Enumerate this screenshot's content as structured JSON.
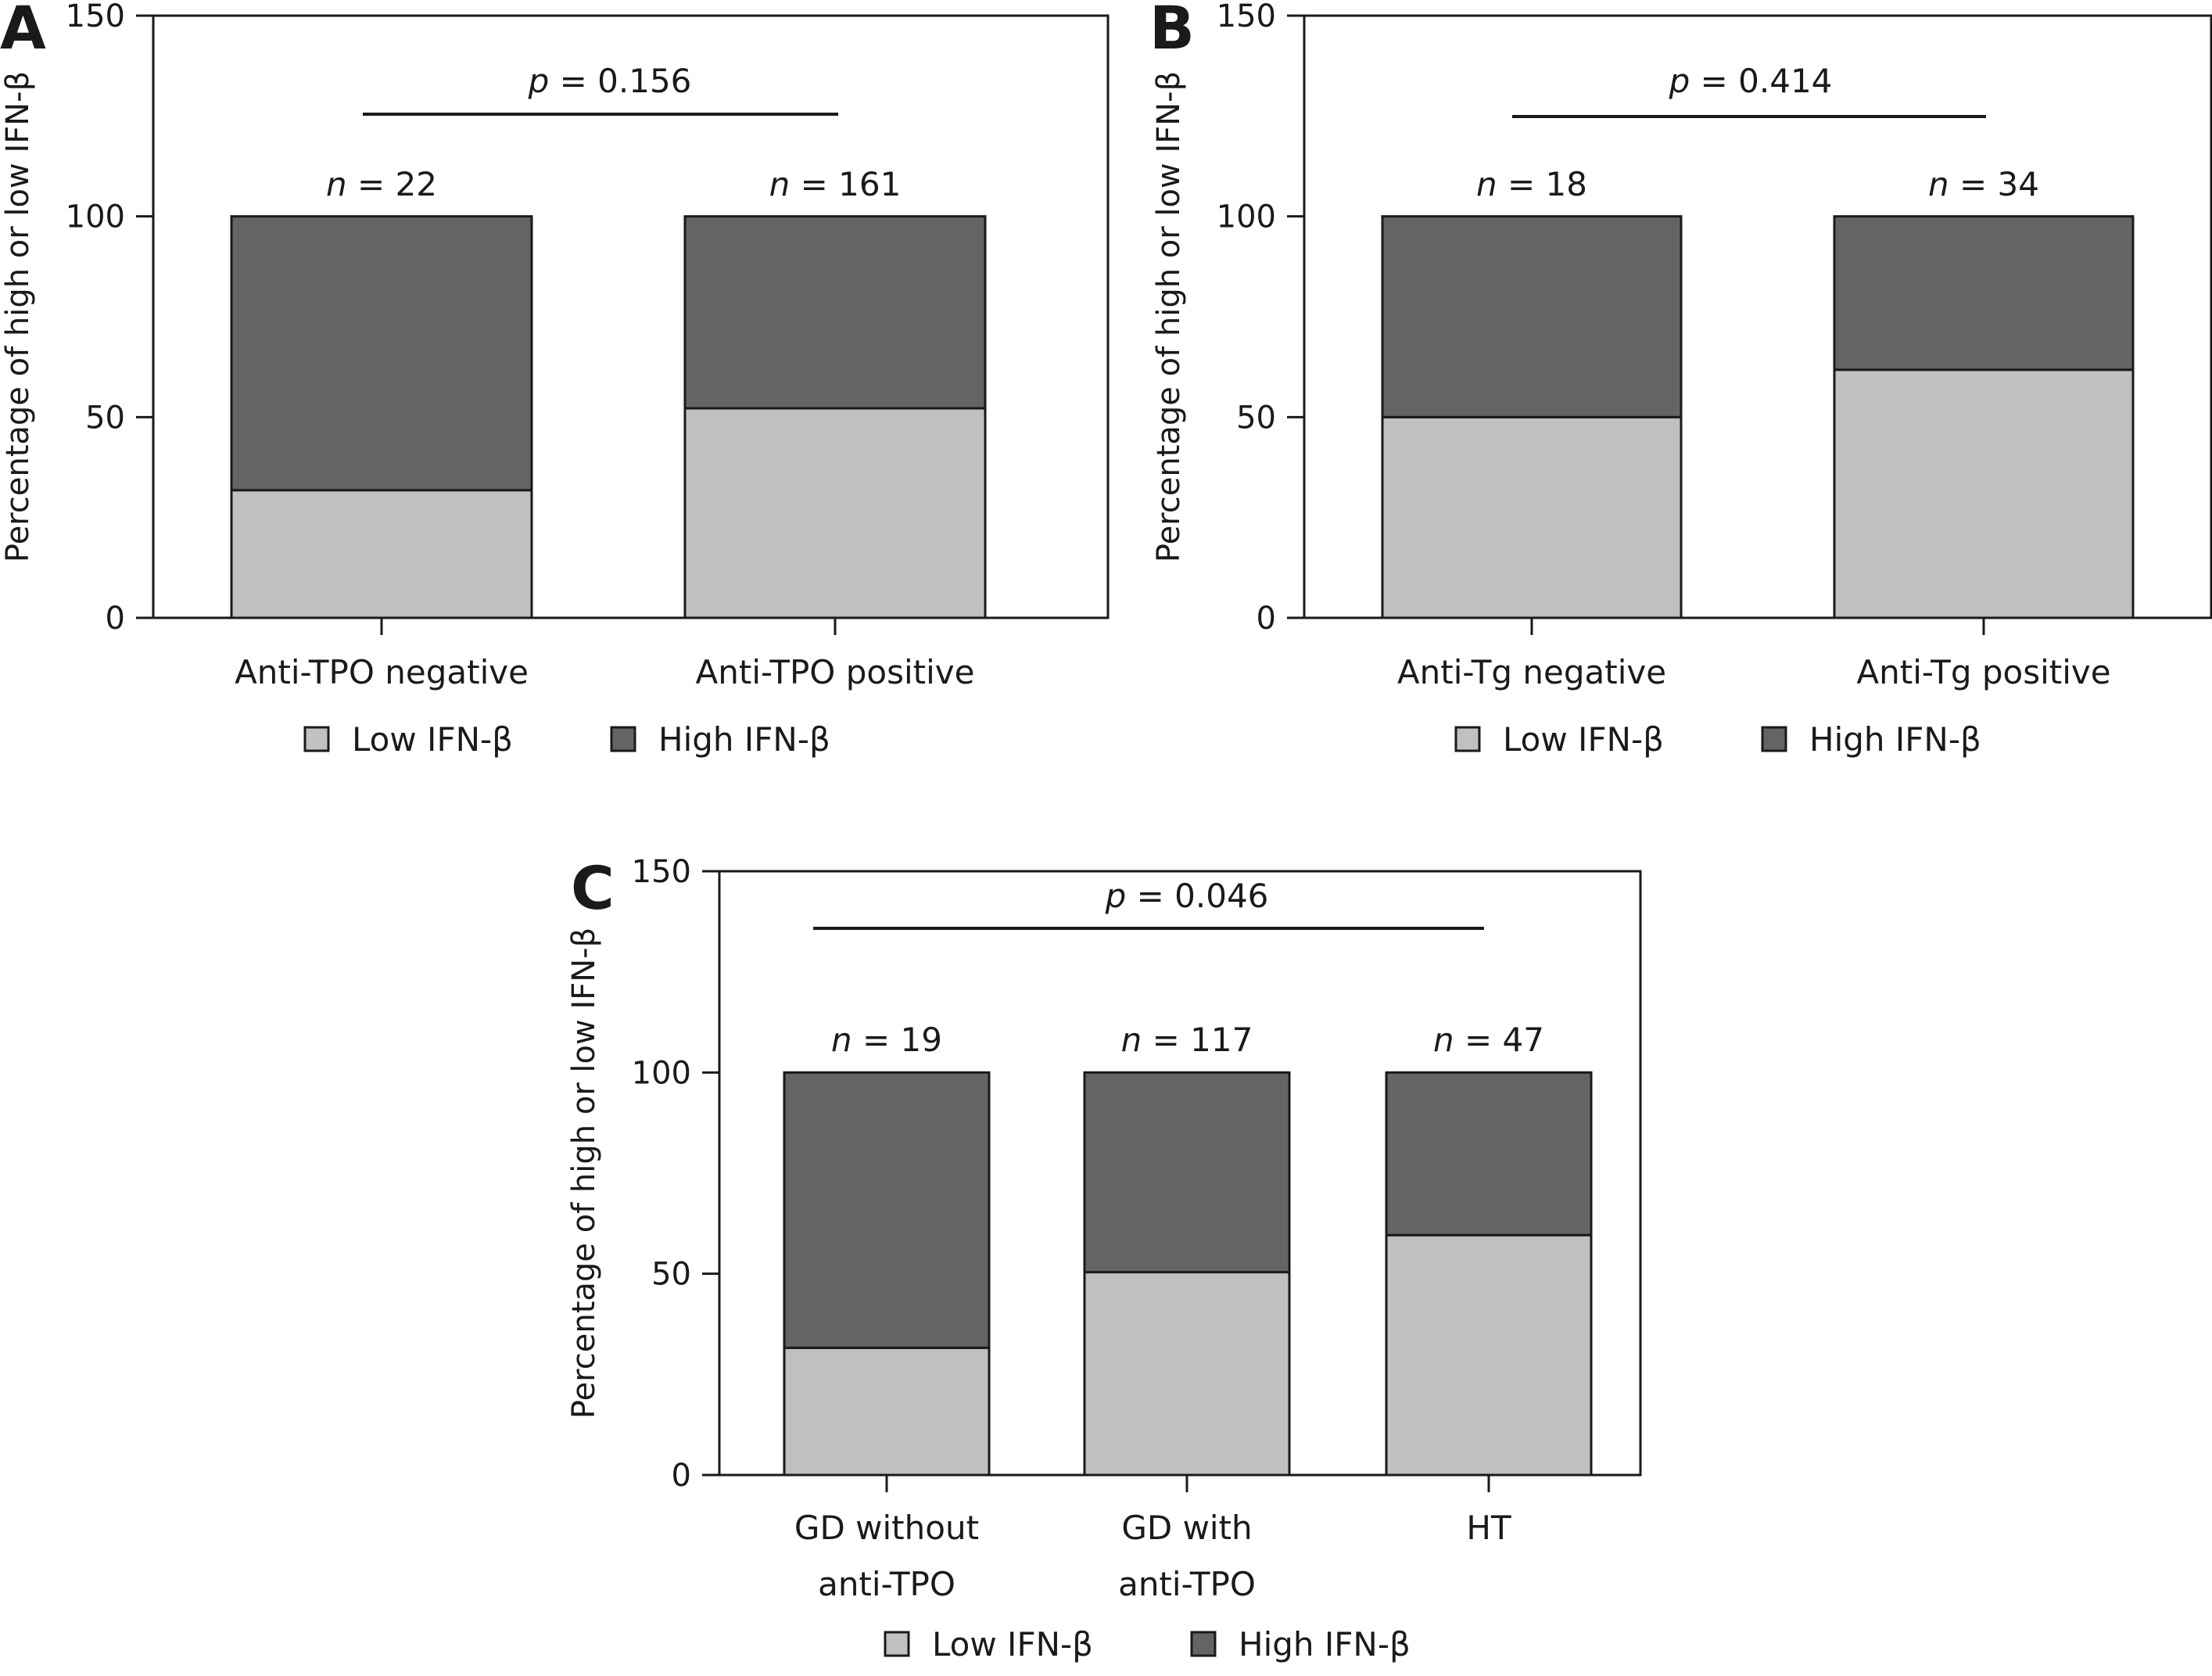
{
  "colors": {
    "low": "#c0c0c0",
    "high": "#646464",
    "axis": "#1a1a1a"
  },
  "chart_data": [
    {
      "panel": "A",
      "type": "bar",
      "stacked": true,
      "ylabel": "Percentage of high or low IFN-β",
      "ylim": [
        0,
        150
      ],
      "yticks": [
        0,
        50,
        100,
        150
      ],
      "categories": [
        "Anti-TPO negative",
        "Anti-TPO positive"
      ],
      "n_labels": [
        "22",
        "161"
      ],
      "p_value": "0.156",
      "series": [
        {
          "name": "Low IFN-β",
          "values": [
            31.8,
            52.2
          ]
        },
        {
          "name": "High IFN-β",
          "values": [
            68.2,
            47.8
          ]
        }
      ],
      "legend": [
        "Low IFN-β",
        "High IFN-β"
      ],
      "legend_position": "bottom"
    },
    {
      "panel": "B",
      "type": "bar",
      "stacked": true,
      "ylabel": "Percentage of high or low IFN-β",
      "ylim": [
        0,
        150
      ],
      "yticks": [
        0,
        50,
        100,
        150
      ],
      "categories": [
        "Anti-Tg negative",
        "Anti-Tg positive"
      ],
      "n_labels": [
        "18",
        "34"
      ],
      "p_value": "0.414",
      "series": [
        {
          "name": "Low IFN-β",
          "values": [
            50.0,
            61.8
          ]
        },
        {
          "name": "High IFN-β",
          "values": [
            50.0,
            38.2
          ]
        }
      ],
      "legend": [
        "Low IFN-β",
        "High IFN-β"
      ],
      "legend_position": "bottom"
    },
    {
      "panel": "C",
      "type": "bar",
      "stacked": true,
      "ylabel": "Percentage of high or low IFN-β",
      "ylim": [
        0,
        150
      ],
      "yticks": [
        0,
        50,
        100,
        150
      ],
      "categories": [
        [
          "GD without",
          "anti-TPO"
        ],
        [
          "GD with",
          "anti-TPO"
        ],
        [
          "HT"
        ]
      ],
      "n_labels": [
        "19",
        "117",
        "47"
      ],
      "p_value": "0.046",
      "series": [
        {
          "name": "Low IFN-β",
          "values": [
            31.6,
            50.4,
            59.6
          ]
        },
        {
          "name": "High IFN-β",
          "values": [
            68.4,
            49.6,
            40.4
          ]
        }
      ],
      "legend": [
        "Low IFN-β",
        "High IFN-β"
      ],
      "legend_position": "bottom"
    }
  ]
}
